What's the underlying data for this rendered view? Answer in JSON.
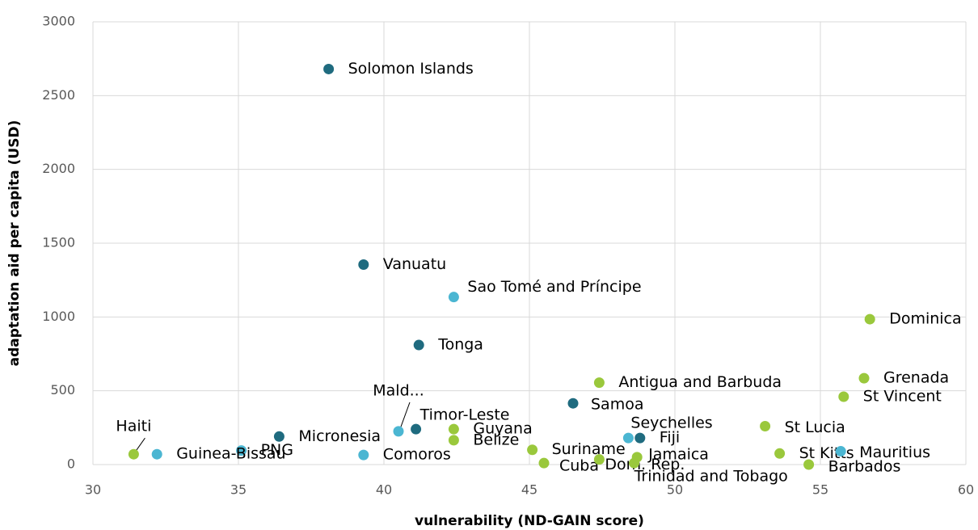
{
  "chart_data": {
    "type": "scatter",
    "x_label": "vulnerability (ND-GAIN score)",
    "y_label": "adaptation aid per capita (USD)",
    "xlim": [
      30,
      60
    ],
    "xticks": [
      30,
      35,
      40,
      45,
      50,
      55,
      60
    ],
    "ylim": [
      0,
      3000
    ],
    "yticks": [
      0,
      500,
      1000,
      1500,
      2000,
      2500,
      3000
    ],
    "grid": true,
    "labels": [
      "Solomon Islands",
      "Vanuatu",
      "Sao Tomé and Príncipe",
      "Tonga",
      "Dominica",
      "Grenada",
      "St Vincent",
      "Antigua and Barbuda",
      "Samoa",
      "Timor-Leste",
      "Mald...",
      "Micronesia",
      "PNG",
      "Guinea-Bissau",
      "Haiti",
      "Comoros",
      "Guyana",
      "Belize",
      "Suriname",
      "Cuba",
      "Dom. Rep.",
      "Jamaica",
      "Trinidad and Tobago",
      "Seychelles",
      "Fiji",
      "St Lucia",
      "St Kitts",
      "Mauritius",
      "Barbados"
    ],
    "x": [
      38.1,
      39.3,
      42.4,
      41.2,
      56.7,
      56.5,
      55.8,
      47.4,
      46.5,
      41.1,
      40.5,
      36.4,
      35.1,
      32.2,
      31.4,
      39.3,
      42.4,
      42.4,
      45.1,
      45.5,
      47.4,
      48.7,
      48.6,
      48.4,
      48.8,
      53.1,
      53.6,
      55.7,
      54.6
    ],
    "values": [
      2680,
      1355,
      1135,
      810,
      985,
      585,
      460,
      555,
      415,
      240,
      225,
      190,
      95,
      70,
      70,
      65,
      240,
      165,
      100,
      10,
      35,
      50,
      10,
      180,
      180,
      260,
      75,
      90,
      0
    ],
    "colors": [
      "#1f6b7f",
      "#1f6b7f",
      "#4bb6d2",
      "#1f6b7f",
      "#9ac83c",
      "#9ac83c",
      "#9ac83c",
      "#9ac83c",
      "#1f6b7f",
      "#1f6b7f",
      "#4bb6d2",
      "#1f6b7f",
      "#4bb6d2",
      "#4bb6d2",
      "#9ac83c",
      "#4bb6d2",
      "#9ac83c",
      "#9ac83c",
      "#9ac83c",
      "#9ac83c",
      "#9ac83c",
      "#9ac83c",
      "#9ac83c",
      "#4bb6d2",
      "#1f6b7f",
      "#9ac83c",
      "#9ac83c",
      "#4bb6d2",
      "#9ac83c"
    ]
  }
}
